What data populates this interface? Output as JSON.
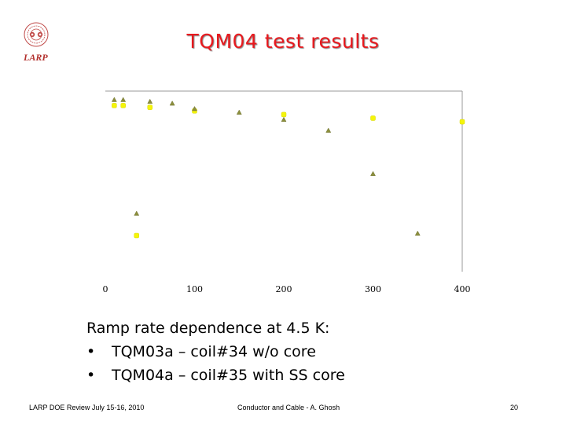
{
  "slide": {
    "title": "TQM04 test results",
    "logo_text": "LARP"
  },
  "chart_data": {
    "type": "scatter",
    "title": "",
    "xlabel": "",
    "ylabel": "",
    "xlim": [
      0,
      400
    ],
    "x_ticks": [
      "0",
      "100",
      "200",
      "300",
      "400"
    ],
    "grid": false,
    "series": [
      {
        "marker": "circle",
        "color": "#f5f50a",
        "points": [
          [
            10,
            0.92
          ],
          [
            20,
            0.92
          ],
          [
            50,
            0.91
          ],
          [
            100,
            0.89
          ],
          [
            200,
            0.87
          ],
          [
            300,
            0.85
          ],
          [
            400,
            0.83
          ],
          [
            35,
            0.2
          ]
        ]
      },
      {
        "marker": "triangle",
        "color": "#8c8f3c",
        "points": [
          [
            10,
            0.95
          ],
          [
            20,
            0.95
          ],
          [
            50,
            0.94
          ],
          [
            75,
            0.93
          ],
          [
            100,
            0.9
          ],
          [
            150,
            0.88
          ],
          [
            200,
            0.84
          ],
          [
            250,
            0.78
          ],
          [
            300,
            0.54
          ],
          [
            350,
            0.21
          ],
          [
            35,
            0.32
          ]
        ]
      }
    ]
  },
  "body": {
    "heading": "Ramp rate dependence at 4.5 K:",
    "bullets": [
      "TQM03a – coil#34 w/o core",
      "TQM04a – coil#35 with SS core"
    ],
    "bullet_char": "•"
  },
  "footer": {
    "left": "LARP DOE Review July 15-16, 2010",
    "center": "Conductor and Cable  -  A. Ghosh",
    "right": "20"
  }
}
